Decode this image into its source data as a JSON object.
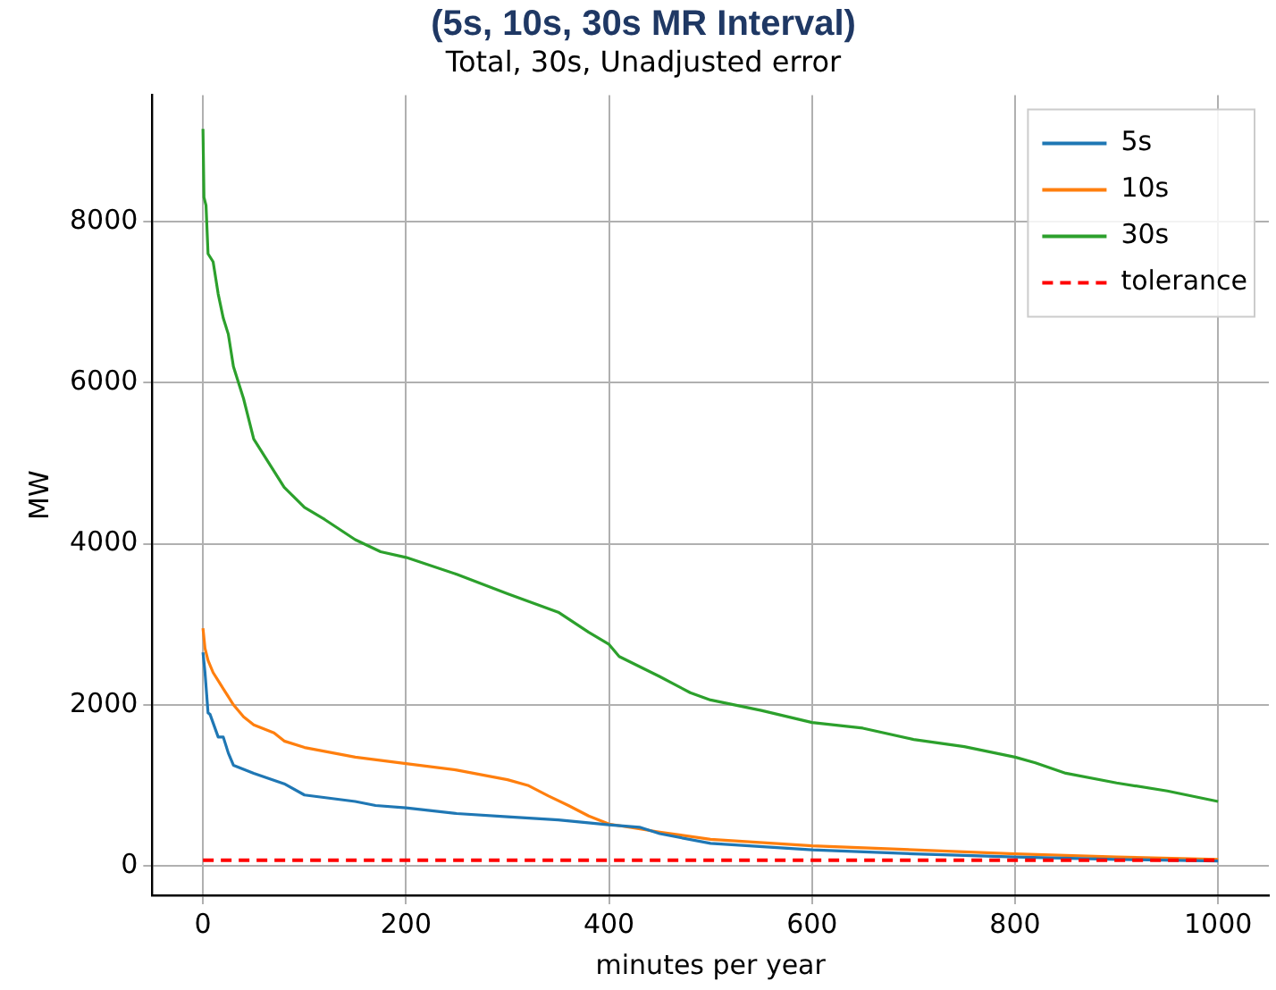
{
  "chart_data": {
    "type": "line",
    "title": "(5s, 10s, 30s MR Interval)",
    "subtitle": "Total, 30s, Unadjusted error",
    "xlabel": "minutes per year",
    "ylabel": "MW",
    "xlim": [
      -50,
      1050
    ],
    "xticks": [
      0,
      200,
      400,
      600,
      800,
      1000
    ],
    "ylim": [
      -365,
      9570
    ],
    "yticks": [
      0,
      2000,
      4000,
      6000,
      8000
    ],
    "grid": true,
    "legend": "top right",
    "line_style": "solid",
    "marker": "none",
    "series": [
      {
        "name": "5s",
        "color": "#1f77b4",
        "x": [
          0,
          2,
          5,
          7,
          15,
          20,
          25,
          30,
          50,
          80,
          100,
          150,
          170,
          200,
          250,
          300,
          350,
          400,
          430,
          450,
          500,
          600,
          700,
          800,
          900,
          1000
        ],
        "values": [
          2650,
          2400,
          1900,
          1880,
          1600,
          1600,
          1400,
          1250,
          1150,
          1020,
          880,
          800,
          750,
          720,
          650,
          610,
          570,
          510,
          480,
          400,
          280,
          200,
          150,
          110,
          80,
          60
        ]
      },
      {
        "name": "10s",
        "color": "#ff7f0e",
        "x": [
          0,
          2,
          5,
          10,
          20,
          30,
          40,
          50,
          70,
          80,
          100,
          150,
          200,
          250,
          300,
          320,
          340,
          360,
          380,
          400,
          450,
          500,
          600,
          700,
          800,
          900,
          1000
        ],
        "values": [
          2950,
          2700,
          2550,
          2400,
          2200,
          2000,
          1850,
          1750,
          1650,
          1550,
          1470,
          1350,
          1270,
          1190,
          1070,
          1000,
          870,
          750,
          620,
          520,
          420,
          330,
          250,
          200,
          150,
          110,
          80
        ]
      },
      {
        "name": "30s",
        "color": "#2ca02c",
        "x": [
          0,
          1,
          3,
          5,
          10,
          15,
          20,
          25,
          30,
          40,
          50,
          60,
          70,
          80,
          100,
          120,
          150,
          175,
          200,
          250,
          300,
          350,
          380,
          400,
          410,
          450,
          480,
          500,
          550,
          600,
          650,
          700,
          750,
          800,
          820,
          850,
          900,
          950,
          1000
        ],
        "values": [
          9150,
          8300,
          8200,
          7600,
          7500,
          7100,
          6800,
          6600,
          6200,
          5800,
          5300,
          5100,
          4900,
          4700,
          4450,
          4300,
          4050,
          3900,
          3830,
          3620,
          3380,
          3150,
          2900,
          2750,
          2600,
          2350,
          2150,
          2060,
          1930,
          1780,
          1710,
          1570,
          1480,
          1350,
          1280,
          1150,
          1030,
          930,
          800
        ]
      }
    ],
    "ref_lines": [
      {
        "axis": "y",
        "value": 70,
        "label": "tolerance",
        "color": "#ff0000",
        "line_style": "dashed"
      }
    ]
  }
}
